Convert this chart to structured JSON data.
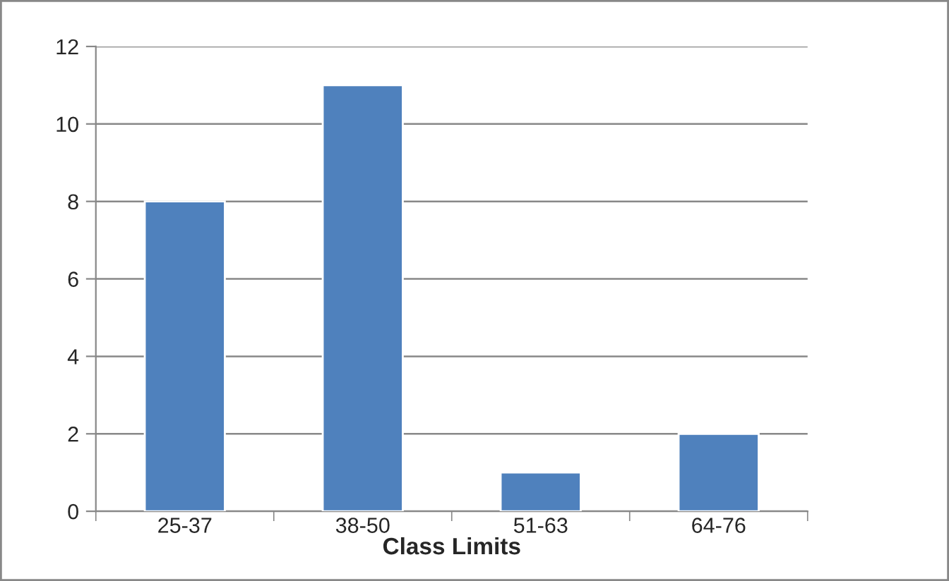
{
  "chart_data": {
    "type": "bar",
    "xlabel": "Class Limits",
    "categories": [
      "25-37",
      "38-50",
      "51-63",
      "64-76"
    ],
    "values": [
      8,
      11,
      1,
      2
    ],
    "color": "#4f81bd",
    "ylim": [
      0,
      12
    ],
    "yticks": [
      0,
      2,
      4,
      6,
      8,
      10,
      12
    ],
    "grid": "y",
    "legend": false
  }
}
